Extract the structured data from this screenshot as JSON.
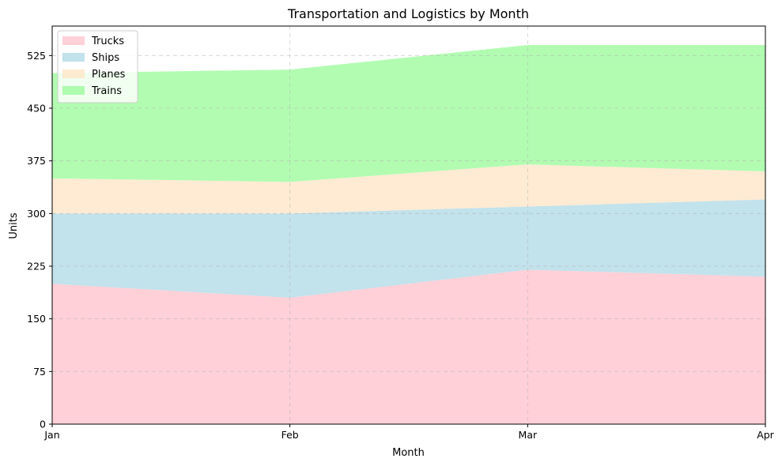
{
  "chart_data": {
    "type": "area",
    "stacked": true,
    "title": "Transportation and Logistics by Month",
    "xlabel": "Month",
    "ylabel": "Units",
    "categories": [
      "Jan",
      "Feb",
      "Mar",
      "Apr"
    ],
    "ylim": [
      0,
      567
    ],
    "yticks": [
      0,
      75,
      150,
      225,
      300,
      375,
      450,
      525
    ],
    "grid": true,
    "legend_position": "top-left",
    "series": [
      {
        "name": "Trucks",
        "values": [
          200,
          180,
          220,
          210
        ],
        "color": "#ffc0cb"
      },
      {
        "name": "Ships",
        "values": [
          100,
          120,
          90,
          110
        ],
        "color": "#add8e6"
      },
      {
        "name": "Planes",
        "values": [
          50,
          45,
          60,
          40
        ],
        "color": "#ffe4c4"
      },
      {
        "name": "Trains",
        "values": [
          150,
          160,
          170,
          180
        ],
        "color": "#98fb98"
      }
    ]
  }
}
